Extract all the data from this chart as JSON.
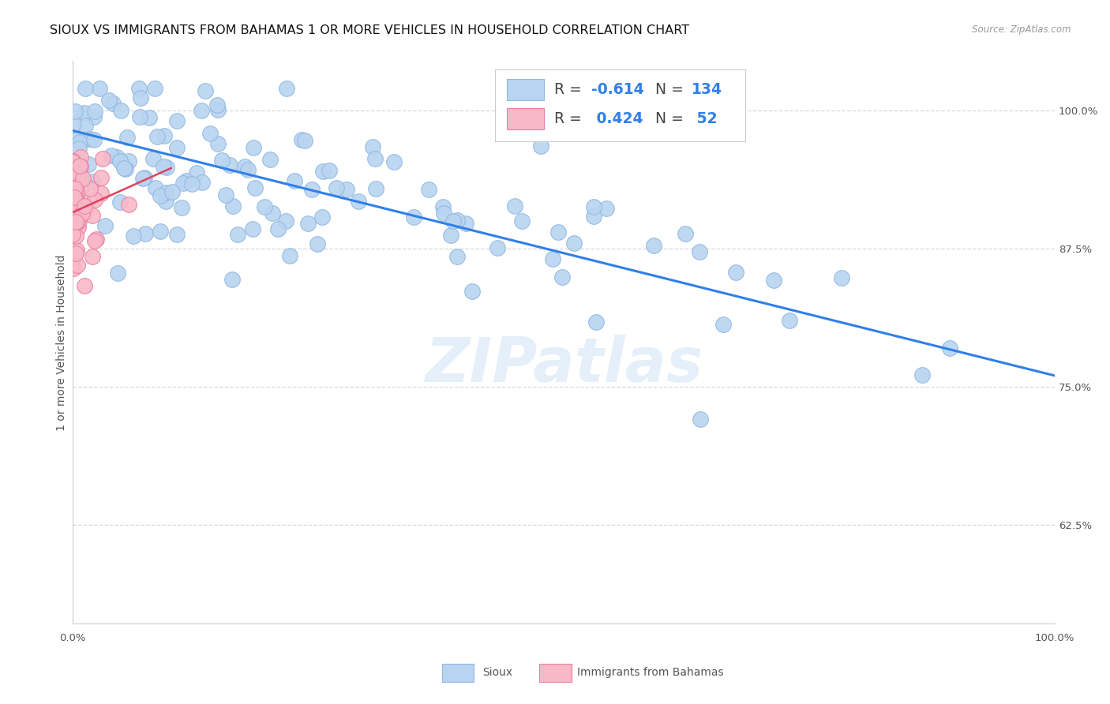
{
  "title": "SIOUX VS IMMIGRANTS FROM BAHAMAS 1 OR MORE VEHICLES IN HOUSEHOLD CORRELATION CHART",
  "source": "Source: ZipAtlas.com",
  "ylabel": "1 or more Vehicles in Household",
  "xlim": [
    0.0,
    1.0
  ],
  "ylim": [
    0.535,
    1.045
  ],
  "yticks": [
    0.625,
    0.75,
    0.875,
    1.0
  ],
  "ytick_labels": [
    "62.5%",
    "75.0%",
    "87.5%",
    "100.0%"
  ],
  "xticks": [
    0.0,
    0.25,
    0.5,
    0.75,
    1.0
  ],
  "xtick_labels": [
    "0.0%",
    "",
    "",
    "",
    "100.0%"
  ],
  "sioux_color": "#b8d4f0",
  "sioux_edge": "#90b8e0",
  "bahamas_color": "#f8b8c8",
  "bahamas_edge": "#e880a0",
  "trend_blue": "#3080e8",
  "trend_red": "#e04060",
  "background_color": "#ffffff",
  "grid_color": "#d8d8d8",
  "title_fontsize": 11.5,
  "axis_label_fontsize": 10,
  "tick_fontsize": 9.5,
  "watermark": "ZIPatlas",
  "sioux_trend_x0": 0.0,
  "sioux_trend_x1": 1.0,
  "sioux_trend_y0": 0.982,
  "sioux_trend_y1": 0.76,
  "bahamas_trend_x0": 0.0,
  "bahamas_trend_x1": 0.1,
  "bahamas_trend_y0": 0.908,
  "bahamas_trend_y1": 0.948
}
